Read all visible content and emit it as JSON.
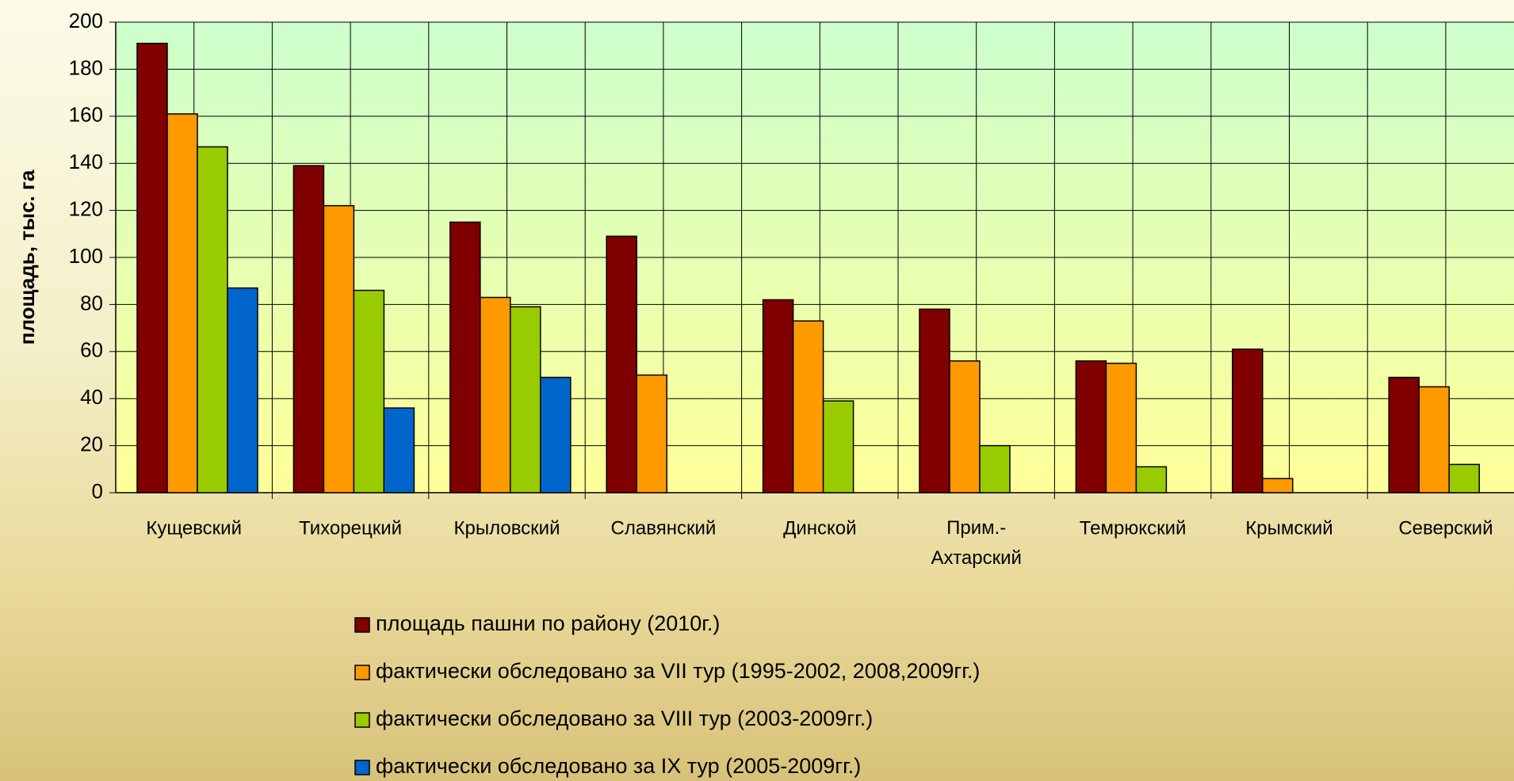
{
  "chart_data": {
    "type": "bar",
    "ylabel": "площадь, тыс. га",
    "categories": [
      "Кущевский",
      "Тихорецкий",
      "Крыловский",
      "Славянский",
      "Динской",
      "Прим.-Ахтарский",
      "Темрюкский",
      "Крымский",
      "Северский"
    ],
    "series": [
      {
        "name": "площадь пашни по району (2010г.)",
        "color": "#800000",
        "values": [
          191,
          139,
          115,
          109,
          82,
          78,
          56,
          61,
          49
        ]
      },
      {
        "name": "фактически обследовано за VII тур (1995-2002, 2008,2009гг.)",
        "color": "#ff9900",
        "values": [
          161,
          122,
          83,
          50,
          73,
          56,
          55,
          6,
          45
        ]
      },
      {
        "name": "фактически обследовано за VIII тур (2003-2009гг.)",
        "color": "#99cc00",
        "values": [
          147,
          86,
          79,
          null,
          39,
          20,
          11,
          null,
          12
        ]
      },
      {
        "name": "фактически обследовано за IX тур (2005-2009гг.)",
        "color": "#0066cc",
        "values": [
          87,
          36,
          49,
          null,
          null,
          null,
          null,
          null,
          null
        ]
      }
    ],
    "ylim": [
      0,
      200
    ],
    "yticks": [
      0,
      20,
      40,
      60,
      80,
      100,
      120,
      140,
      160,
      180,
      200
    ],
    "grid": true,
    "legend": "bottom"
  }
}
